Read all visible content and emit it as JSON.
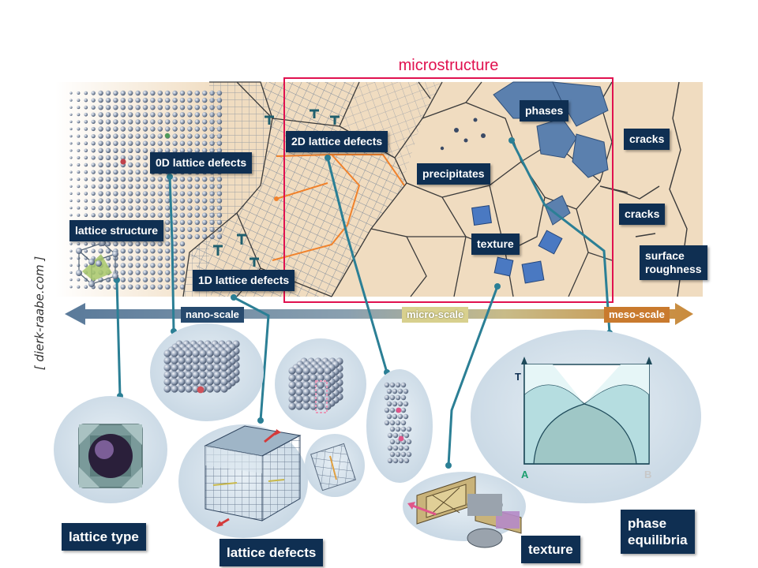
{
  "title": "microstructure",
  "credit": "[ dierk-raabe.com ]",
  "colors": {
    "title_accent": "#e0114f",
    "label_bg": "#0f2f52",
    "label_text": "#ffffff",
    "connector": "#2b7f95",
    "grain_fill": "#f0dcc0",
    "grain_line": "#3a3a3a",
    "phase_fill": "#5b80ae",
    "bubble_fill": "#cfdde8"
  },
  "feature_labels": {
    "lattice_structure": "lattice structure",
    "zero_d_defects": "0D lattice defects",
    "one_d_defects": "1D lattice defects",
    "two_d_defects": "2D lattice defects",
    "precipitates": "precipitates",
    "phases": "phases",
    "texture": "texture",
    "cracks_1": "cracks",
    "cracks_2": "cracks",
    "surface_roughness_1": "surface",
    "surface_roughness_2": "roughness"
  },
  "scale_arrow": {
    "nano": "nano-scale",
    "micro": "micro-scale",
    "meso": "meso-scale"
  },
  "category_labels": {
    "lattice_type": "lattice type",
    "lattice_defects": "lattice defects",
    "texture": "texture",
    "phase_equilibria_1": "phase",
    "phase_equilibria_2": "equilibria"
  },
  "phase_diagram": {
    "y_axis_label": "T",
    "x_left_label": "A",
    "x_right_label": "B"
  }
}
